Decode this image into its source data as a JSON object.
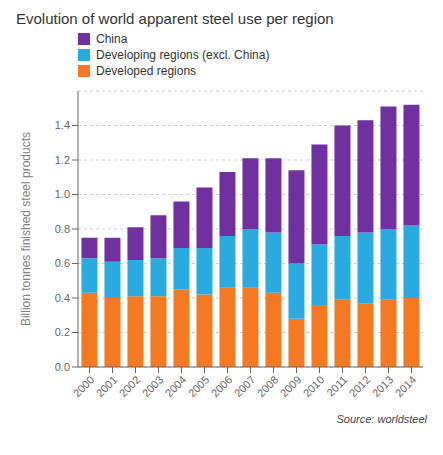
{
  "chart_data": {
    "type": "bar",
    "stacked": true,
    "title": "Evolution of world apparent steel use per region",
    "ylabel": "Billion tonnes finished steel products",
    "categories": [
      "2000",
      "2001",
      "2002",
      "2003",
      "2004",
      "2005",
      "2006",
      "2007",
      "2008",
      "2009",
      "2010",
      "2011",
      "2012",
      "2013",
      "2014"
    ],
    "series": [
      {
        "name": "Developed regions",
        "color": "#f47920",
        "values": [
          0.43,
          0.4,
          0.41,
          0.41,
          0.45,
          0.42,
          0.46,
          0.46,
          0.43,
          0.28,
          0.36,
          0.39,
          0.37,
          0.39,
          0.4
        ]
      },
      {
        "name": "Developing regions (excl. China)",
        "color": "#29abe2",
        "values": [
          0.2,
          0.21,
          0.21,
          0.22,
          0.24,
          0.27,
          0.3,
          0.34,
          0.35,
          0.32,
          0.35,
          0.37,
          0.41,
          0.41,
          0.42
        ]
      },
      {
        "name": "China",
        "color": "#7030a0",
        "values": [
          0.12,
          0.14,
          0.19,
          0.25,
          0.27,
          0.35,
          0.37,
          0.41,
          0.43,
          0.54,
          0.58,
          0.64,
          0.65,
          0.71,
          0.7
        ]
      }
    ],
    "ylim": [
      0,
      1.6
    ],
    "yticks": [
      {
        "value": 0,
        "label": "0.0"
      },
      0.2,
      0.4,
      0.6,
      0.8,
      {
        "value": 1,
        "label": "1.0"
      },
      1.2,
      1.4
    ],
    "grid": true,
    "legend": "upper left",
    "annotation": "Source: worldsteel"
  }
}
